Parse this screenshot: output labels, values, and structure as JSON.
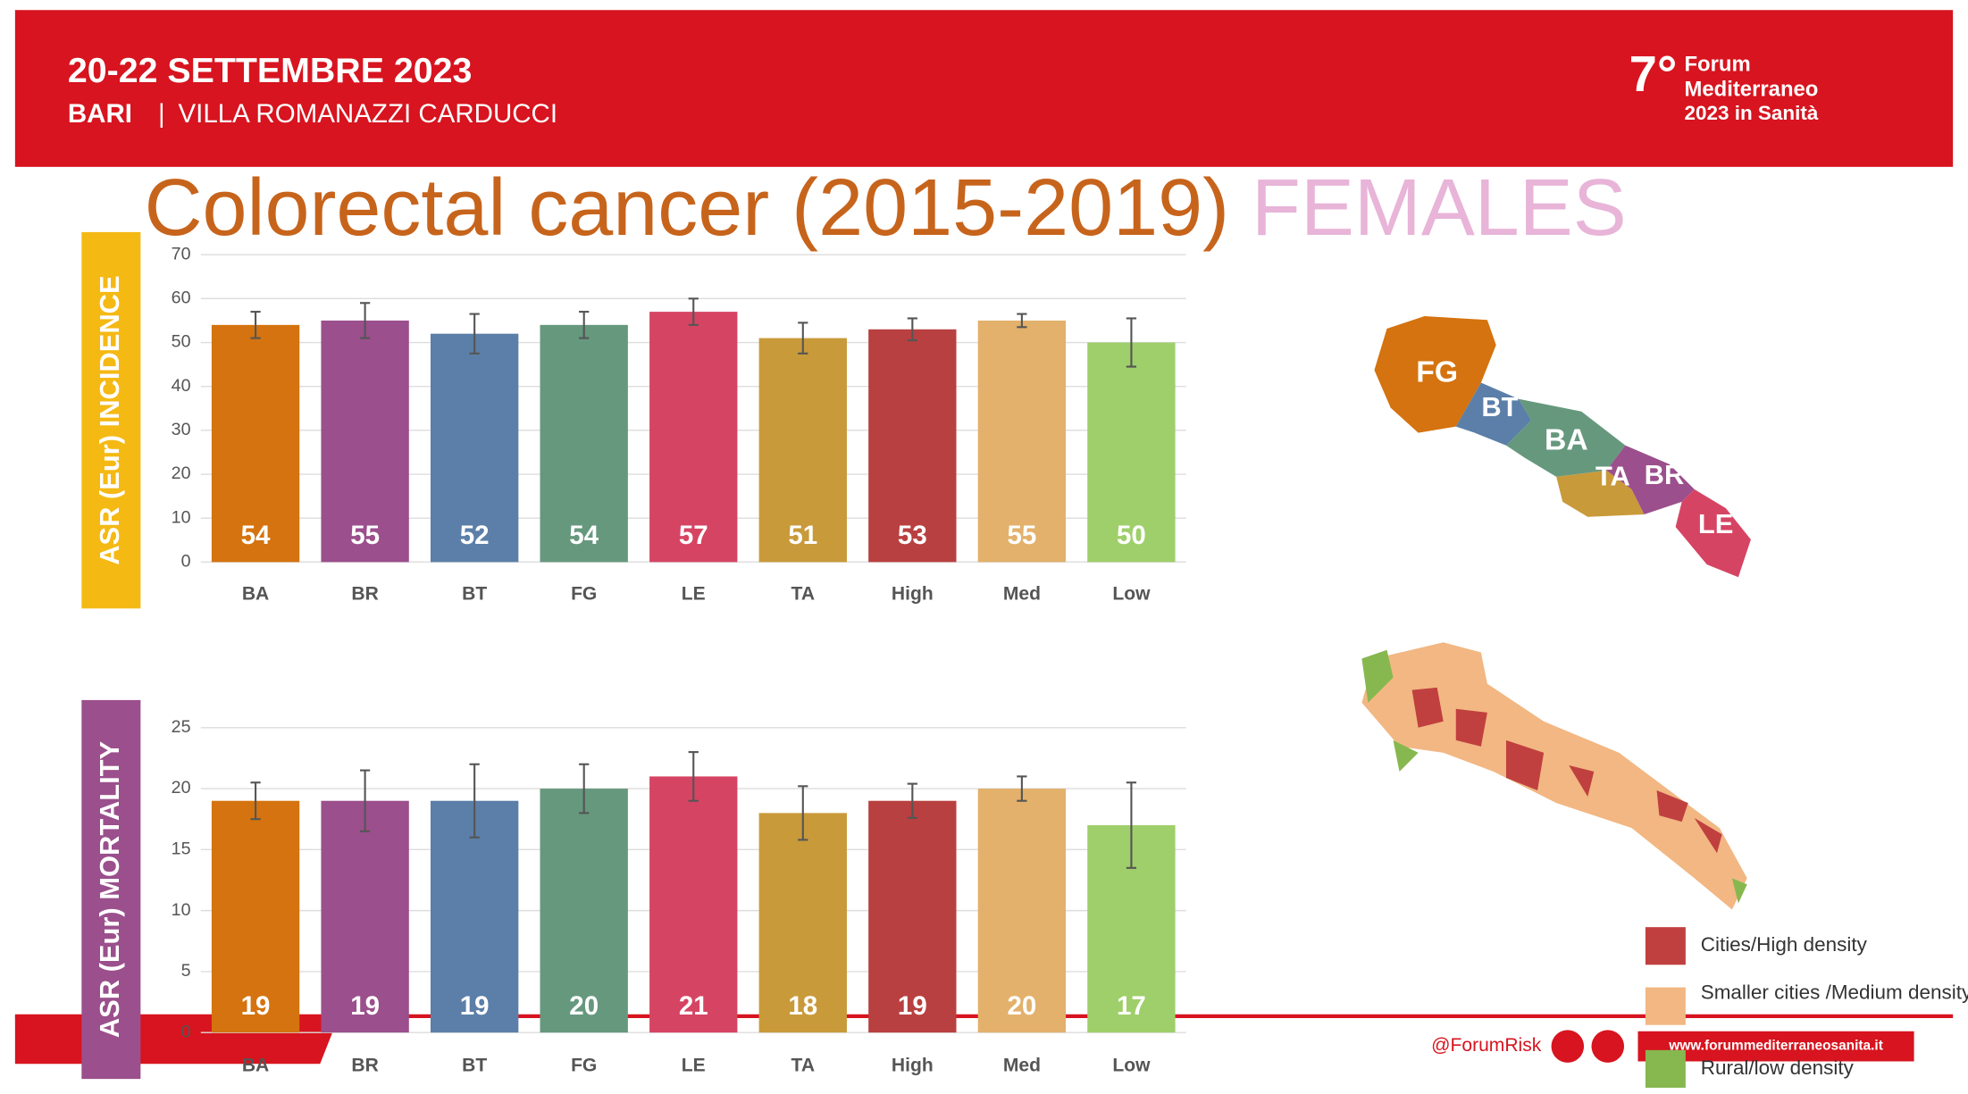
{
  "header": {
    "dates": "20-22 SETTEMBRE 2023",
    "city": "BARI",
    "venue": "VILLA ROMANAZZI CARDUCCI",
    "edition": "7°",
    "forum": [
      "Forum",
      "Mediterraneo",
      "2023 in Sanità"
    ]
  },
  "title": "Colorectal cancer (2015-2019)",
  "subtitle": "FEMALES",
  "chart_data": [
    {
      "type": "bar",
      "y_label": "ASR (Eur) INCIDENCE",
      "categories": [
        "BA",
        "BR",
        "BT",
        "FG",
        "LE",
        "TA",
        "High",
        "Med",
        "Low"
      ],
      "values": [
        54,
        55,
        52,
        54,
        57,
        51,
        53,
        55,
        50
      ],
      "errors": [
        3,
        4,
        4.5,
        3,
        3,
        3.5,
        2.5,
        1.5,
        5.5
      ],
      "colors": [
        "#d4730f",
        "#9b4f8c",
        "#5b7fa8",
        "#66987e",
        "#d64463",
        "#c99a3a",
        "#b94040",
        "#e3b16c",
        "#9fcf6a"
      ],
      "ylim": [
        0,
        70
      ],
      "yticks": [
        0,
        10,
        20,
        30,
        40,
        50,
        60,
        70
      ],
      "grid": true
    },
    {
      "type": "bar",
      "y_label": "ASR (Eur) MORTALITY",
      "categories": [
        "BA",
        "BR",
        "BT",
        "FG",
        "LE",
        "TA",
        "High",
        "Med",
        "Low"
      ],
      "values": [
        19,
        19,
        19,
        20,
        21,
        18,
        19,
        20,
        17
      ],
      "errors": [
        1.5,
        2.5,
        3,
        2,
        2,
        2.2,
        1.4,
        1,
        3.5
      ],
      "colors": [
        "#d4730f",
        "#9b4f8c",
        "#5b7fa8",
        "#66987e",
        "#d64463",
        "#c99a3a",
        "#b94040",
        "#e3b16c",
        "#9fcf6a"
      ],
      "ylim": [
        0,
        25
      ],
      "yticks": [
        0,
        5,
        10,
        15,
        20,
        25
      ],
      "grid": true
    }
  ],
  "map": {
    "labels": [
      "FG",
      "BT",
      "BA",
      "TA",
      "BR",
      "LE"
    ],
    "legend": [
      {
        "label": "Cities/High density",
        "color": "#c0403f"
      },
      {
        "label": "Smaller cities /Medium density",
        "color": "#f2b783"
      },
      {
        "label": "Rural/low density",
        "color": "#86b84f"
      }
    ]
  },
  "footer": {
    "handle": "@ForumRisk",
    "url": "www.forummediterraneosanita.it"
  }
}
